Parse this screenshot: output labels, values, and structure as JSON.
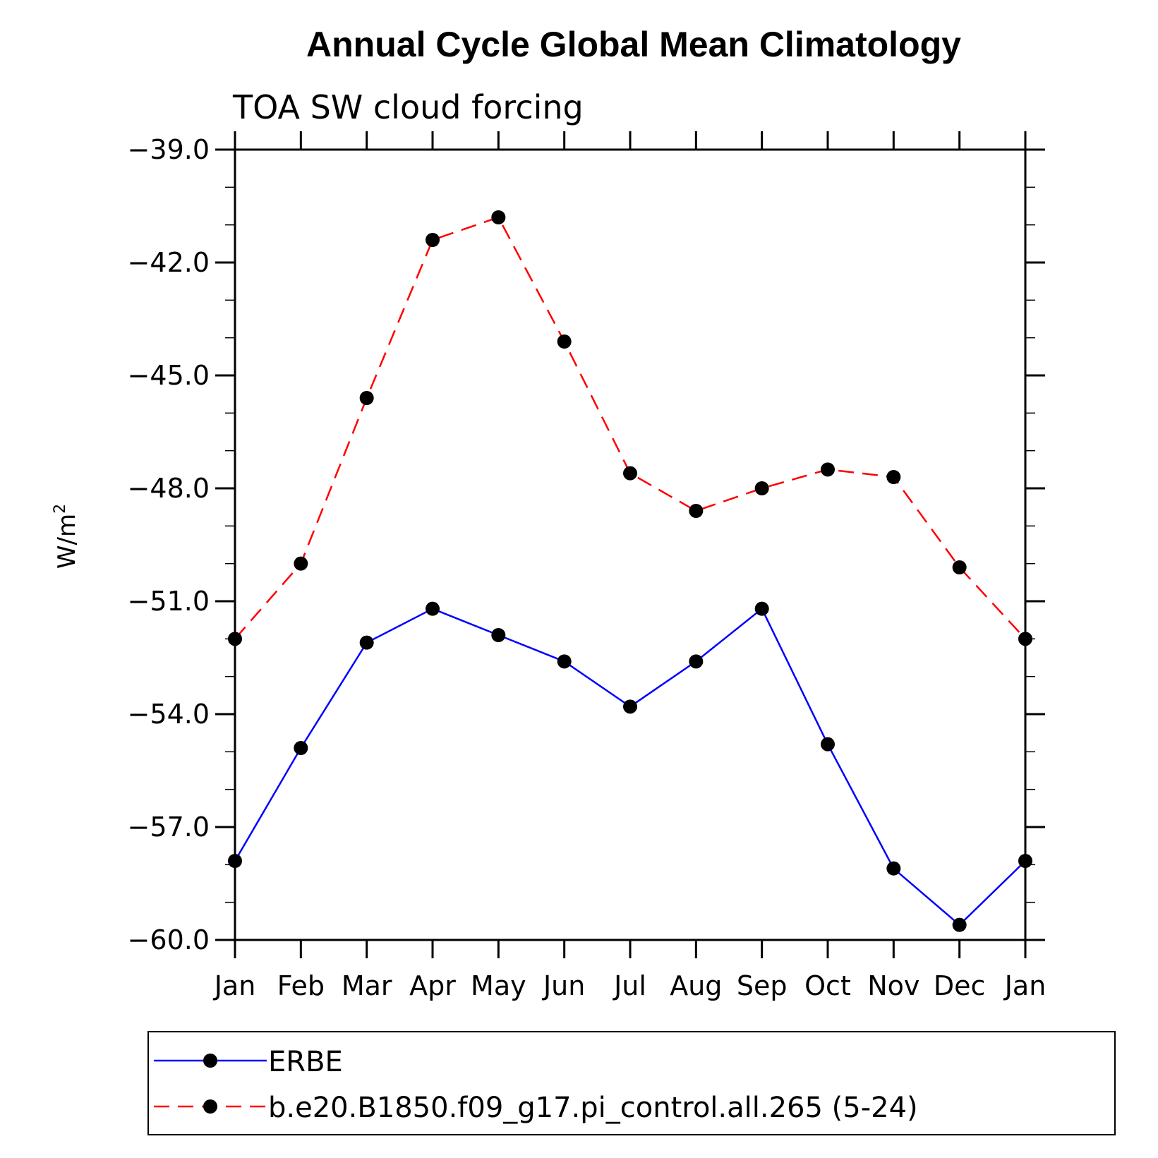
{
  "chart_data": {
    "type": "line",
    "title": "Annual Cycle Global Mean Climatology",
    "subtitle": "TOA SW cloud forcing",
    "ylabel": "W/m",
    "ylabel_superscript": "2",
    "categories": [
      "Jan",
      "Feb",
      "Mar",
      "Apr",
      "May",
      "Jun",
      "Jul",
      "Aug",
      "Sep",
      "Oct",
      "Nov",
      "Dec",
      "Jan"
    ],
    "ylim": [
      -60.0,
      -39.0
    ],
    "yticks": [
      "-39.0",
      "-42.0",
      "-45.0",
      "-48.0",
      "-51.0",
      "-54.0",
      "-57.0",
      "-60.0"
    ],
    "ytick_values": [
      -39,
      -42,
      -45,
      -48,
      -51,
      -54,
      -57,
      -60
    ],
    "legend_position": "bottom",
    "series": [
      {
        "name": "ERBE",
        "color": "#0000ff",
        "dashed": false,
        "values": [
          -57.9,
          -54.9,
          -52.1,
          -51.2,
          -51.9,
          -52.6,
          -53.8,
          -52.6,
          -51.2,
          -54.8,
          -58.1,
          -59.6,
          -57.9
        ]
      },
      {
        "name": "b.e20.B1850.f09_g17.pi_control.all.265 (5-24)",
        "color": "#ff0000",
        "dashed": true,
        "values": [
          -52.0,
          -50.0,
          -45.6,
          -41.4,
          -40.8,
          -44.1,
          -47.6,
          -48.6,
          -48.0,
          -47.5,
          -47.7,
          -50.1,
          -52.0
        ]
      }
    ]
  }
}
